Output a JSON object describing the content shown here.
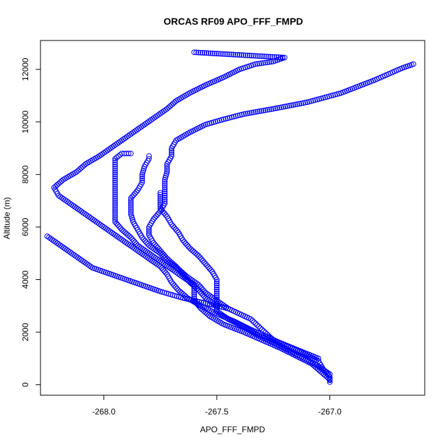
{
  "chart_data": {
    "type": "scatter",
    "title": "ORCAS RF09 APO_FFF_FMPD",
    "xlabel": "APO_FFF_FMPD",
    "ylabel": "Altitude (m)",
    "xlim": [
      -268.28,
      -266.58
    ],
    "ylim": [
      -400,
      13100
    ],
    "x_ticks": [
      -268.0,
      -267.5,
      -267.0
    ],
    "x_tick_labels": [
      "-268.0",
      "-267.5",
      "-267.0"
    ],
    "y_ticks": [
      0,
      2000,
      4000,
      6000,
      8000,
      10000,
      12000
    ],
    "y_tick_labels": [
      "0",
      "2000",
      "4000",
      "6000",
      "8000",
      "10000",
      "12000"
    ],
    "grid": false,
    "marker": "open-circle",
    "color": "#0000ff",
    "series": [
      {
        "points": [
          [
            -267.0,
            100
          ],
          [
            -267.0,
            300
          ],
          [
            -267.03,
            600
          ],
          [
            -267.05,
            900
          ],
          [
            -267.12,
            1200
          ],
          [
            -267.2,
            1500
          ],
          [
            -267.27,
            1800
          ],
          [
            -267.35,
            2100
          ],
          [
            -267.42,
            2400
          ],
          [
            -267.5,
            2700
          ],
          [
            -267.57,
            3000
          ],
          [
            -267.63,
            3300
          ],
          [
            -267.67,
            3600
          ],
          [
            -267.7,
            3900
          ],
          [
            -267.72,
            4200
          ],
          [
            -267.75,
            4500
          ],
          [
            -267.8,
            4800
          ],
          [
            -267.85,
            5100
          ],
          [
            -267.9,
            5400
          ],
          [
            -267.95,
            5700
          ],
          [
            -268.0,
            6000
          ],
          [
            -268.05,
            6300
          ],
          [
            -268.1,
            6600
          ],
          [
            -268.15,
            6900
          ],
          [
            -268.2,
            7200
          ],
          [
            -268.22,
            7500
          ],
          [
            -268.18,
            7800
          ],
          [
            -268.12,
            8100
          ],
          [
            -268.08,
            8400
          ],
          [
            -268.02,
            8700
          ],
          [
            -267.97,
            9000
          ],
          [
            -267.92,
            9300
          ],
          [
            -267.87,
            9600
          ],
          [
            -267.82,
            9900
          ],
          [
            -267.77,
            10200
          ],
          [
            -267.72,
            10500
          ],
          [
            -267.68,
            10800
          ],
          [
            -267.62,
            11100
          ],
          [
            -267.55,
            11400
          ],
          [
            -267.47,
            11700
          ],
          [
            -267.4,
            12000
          ],
          [
            -267.33,
            12200
          ],
          [
            -267.25,
            12300
          ],
          [
            -267.2,
            12450
          ],
          [
            -267.3,
            12500
          ],
          [
            -267.4,
            12550
          ],
          [
            -267.5,
            12600
          ],
          [
            -267.6,
            12650
          ]
        ]
      },
      {
        "points": [
          [
            -267.0,
            200
          ],
          [
            -267.08,
            800
          ],
          [
            -267.15,
            1100
          ],
          [
            -267.22,
            1400
          ],
          [
            -267.3,
            1700
          ],
          [
            -267.38,
            2000
          ],
          [
            -267.47,
            2300
          ],
          [
            -267.53,
            2600
          ],
          [
            -267.57,
            2900
          ],
          [
            -267.6,
            3200
          ],
          [
            -267.6,
            3500
          ],
          [
            -267.6,
            3800
          ],
          [
            -267.65,
            4100
          ],
          [
            -267.7,
            4400
          ],
          [
            -267.75,
            4700
          ],
          [
            -267.8,
            5000
          ],
          [
            -267.85,
            5300
          ],
          [
            -267.88,
            5600
          ],
          [
            -267.92,
            5900
          ],
          [
            -267.95,
            6200
          ],
          [
            -267.95,
            6500
          ],
          [
            -267.95,
            6800
          ],
          [
            -267.95,
            7100
          ],
          [
            -267.95,
            7400
          ],
          [
            -267.95,
            7700
          ],
          [
            -267.95,
            8000
          ],
          [
            -267.95,
            8300
          ],
          [
            -267.95,
            8600
          ],
          [
            -267.92,
            8800
          ],
          [
            -267.88,
            8800
          ]
        ]
      },
      {
        "points": [
          [
            -267.45,
            2900
          ],
          [
            -267.5,
            3200
          ],
          [
            -267.55,
            3500
          ],
          [
            -267.58,
            3800
          ],
          [
            -267.63,
            4100
          ],
          [
            -267.67,
            4400
          ],
          [
            -267.72,
            4700
          ],
          [
            -267.75,
            5000
          ],
          [
            -267.8,
            5300
          ],
          [
            -267.83,
            5600
          ],
          [
            -267.85,
            5900
          ],
          [
            -267.87,
            6200
          ],
          [
            -267.88,
            6500
          ],
          [
            -267.88,
            6800
          ],
          [
            -267.88,
            7100
          ],
          [
            -267.85,
            7400
          ],
          [
            -267.83,
            7700
          ],
          [
            -267.83,
            8000
          ],
          [
            -267.82,
            8300
          ],
          [
            -267.8,
            8600
          ],
          [
            -267.8,
            8700
          ]
        ]
      },
      {
        "points": [
          [
            -267.5,
            3000
          ],
          [
            -267.55,
            3300
          ],
          [
            -267.58,
            3600
          ],
          [
            -267.62,
            3900
          ],
          [
            -267.65,
            4200
          ],
          [
            -267.68,
            4500
          ],
          [
            -267.72,
            4800
          ],
          [
            -267.75,
            5100
          ],
          [
            -267.78,
            5400
          ],
          [
            -267.8,
            5700
          ],
          [
            -267.8,
            6000
          ],
          [
            -267.78,
            6300
          ],
          [
            -267.75,
            6600
          ],
          [
            -267.73,
            6900
          ],
          [
            -267.73,
            7200
          ],
          [
            -267.73,
            7500
          ],
          [
            -267.73,
            7800
          ],
          [
            -267.72,
            8100
          ],
          [
            -267.72,
            8400
          ],
          [
            -267.7,
            8700
          ],
          [
            -267.7,
            9000
          ],
          [
            -267.68,
            9300
          ],
          [
            -267.62,
            9600
          ],
          [
            -267.55,
            9900
          ],
          [
            -267.47,
            10100
          ],
          [
            -267.38,
            10300
          ],
          [
            -267.25,
            10500
          ],
          [
            -267.1,
            10750
          ],
          [
            -266.95,
            11100
          ],
          [
            -266.8,
            11600
          ],
          [
            -266.68,
            12050
          ],
          [
            -266.63,
            12200
          ]
        ]
      },
      {
        "points": [
          [
            -267.0,
            400
          ],
          [
            -267.05,
            700
          ],
          [
            -267.1,
            950
          ],
          [
            -267.18,
            1300
          ],
          [
            -267.25,
            1600
          ],
          [
            -267.32,
            1900
          ],
          [
            -267.38,
            2200
          ],
          [
            -267.45,
            2500
          ],
          [
            -267.5,
            2800
          ],
          [
            -267.5,
            3100
          ],
          [
            -267.5,
            3400
          ],
          [
            -267.5,
            3700
          ],
          [
            -267.5,
            4000
          ],
          [
            -267.52,
            4300
          ],
          [
            -267.55,
            4600
          ],
          [
            -267.58,
            4900
          ],
          [
            -267.62,
            5200
          ],
          [
            -267.65,
            5500
          ],
          [
            -267.67,
            5800
          ],
          [
            -267.7,
            6100
          ],
          [
            -267.72,
            6400
          ],
          [
            -267.75,
            6700
          ],
          [
            -267.75,
            7000
          ],
          [
            -267.75,
            7300
          ]
        ]
      },
      {
        "points": [
          [
            -267.05,
            1000
          ],
          [
            -267.15,
            1350
          ],
          [
            -267.25,
            1700
          ],
          [
            -267.3,
            2100
          ],
          [
            -267.35,
            2500
          ],
          [
            -267.45,
            2900
          ],
          [
            -267.55,
            3100
          ],
          [
            -267.65,
            3300
          ],
          [
            -267.75,
            3550
          ],
          [
            -267.85,
            3850
          ],
          [
            -267.95,
            4150
          ],
          [
            -268.05,
            4450
          ],
          [
            -268.1,
            4750
          ],
          [
            -268.15,
            5050
          ],
          [
            -268.2,
            5350
          ],
          [
            -268.25,
            5650
          ]
        ]
      }
    ]
  }
}
